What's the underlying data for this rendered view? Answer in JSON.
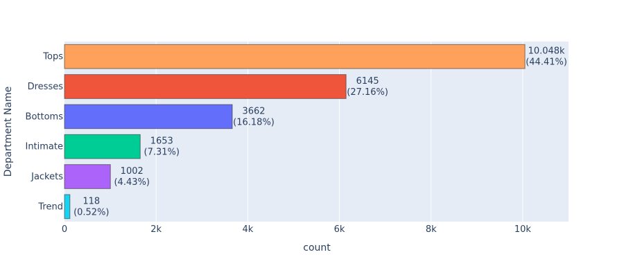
{
  "chart_data": {
    "type": "bar",
    "orientation": "horizontal",
    "title": "",
    "xlabel": "count",
    "ylabel": "Department Name",
    "xlim": [
      0,
      11000
    ],
    "x_ticks": [
      0,
      2000,
      4000,
      6000,
      8000,
      10000
    ],
    "x_tick_labels": [
      "0",
      "2k",
      "4k",
      "6k",
      "8k",
      "10k"
    ],
    "grid": true,
    "legend": "none",
    "plot_background": "#e5ecf6",
    "categories": [
      "Tops",
      "Dresses",
      "Bottoms",
      "Intimate",
      "Jackets",
      "Trend"
    ],
    "values": [
      10048,
      6145,
      3662,
      1653,
      1002,
      118
    ],
    "value_labels": [
      "10.048k",
      "6145",
      "3662",
      "1653",
      "1002",
      "118"
    ],
    "percent_labels": [
      "(44.41%)",
      "(27.16%)",
      "(16.18%)",
      "(7.31%)",
      "(4.43%)",
      "(0.52%)"
    ],
    "colors": [
      "#ffa15a",
      "#ef553b",
      "#636efa",
      "#00cc96",
      "#ab63fa",
      "#19d3f3"
    ]
  }
}
